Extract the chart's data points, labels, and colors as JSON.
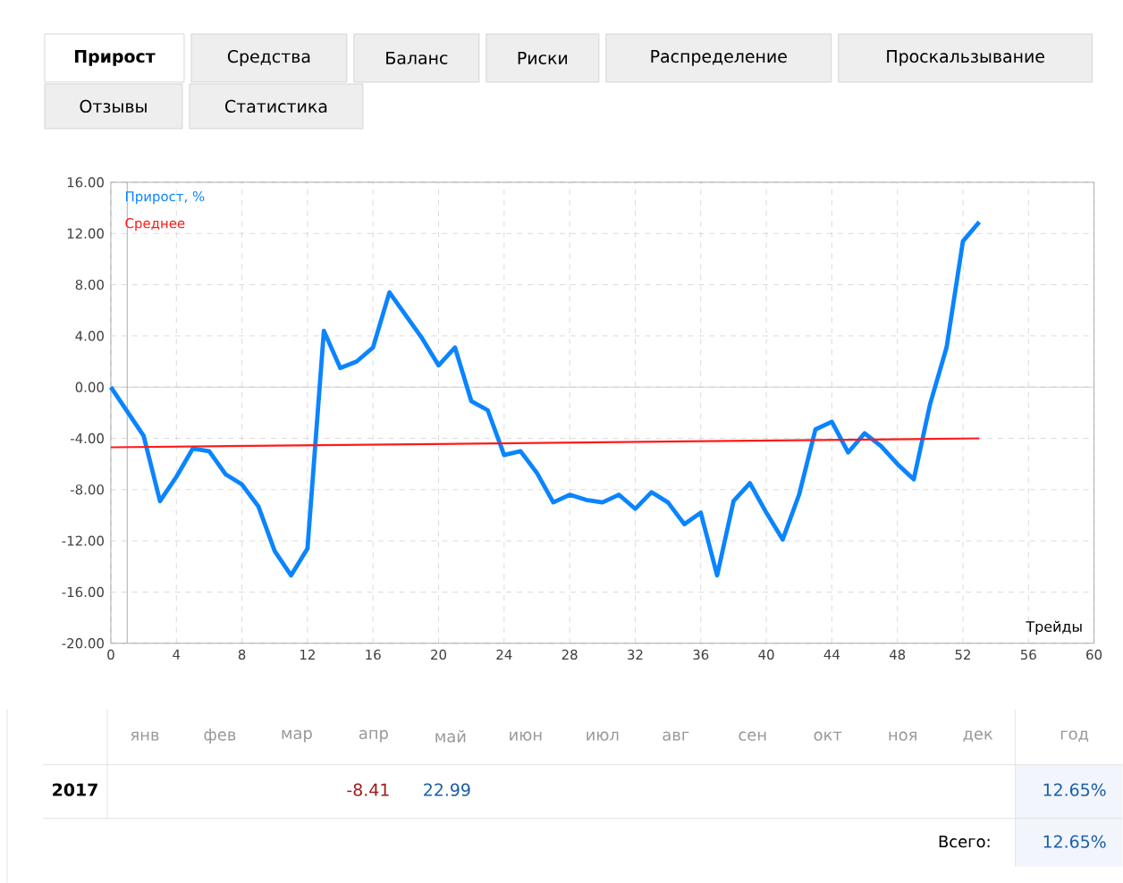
{
  "chart_data": {
    "type": "line",
    "xlabel": "Трейды",
    "legend": "top left",
    "grid": true,
    "xlim": [
      0,
      60
    ],
    "xticks": [
      0,
      4,
      8,
      12,
      16,
      20,
      24,
      28,
      32,
      36,
      40,
      44,
      48,
      52,
      56,
      60
    ],
    "ylim": [
      -20,
      16
    ],
    "yticks": [
      {
        "value": -20,
        "label": "-20.00"
      },
      {
        "value": -16,
        "label": "-16.00"
      },
      {
        "value": -12,
        "label": "-12.00"
      },
      {
        "value": -8,
        "label": "-8.00"
      },
      {
        "value": -4,
        "label": "-4.00"
      },
      {
        "value": 0,
        "label": "0.00"
      },
      {
        "value": 4,
        "label": "4.00"
      },
      {
        "value": 8,
        "label": "8.00"
      },
      {
        "value": 12,
        "label": "12.00"
      },
      {
        "value": 16,
        "label": "16.00"
      }
    ],
    "series": [
      {
        "name": "Прирост, %",
        "color": "#0a84ff",
        "x": [
          0,
          1,
          2,
          3,
          4,
          5,
          6,
          7,
          8,
          9,
          10,
          11,
          12,
          13,
          14,
          15,
          16,
          17,
          18,
          19,
          20,
          21,
          22,
          23,
          24,
          25,
          26,
          27,
          28,
          29,
          30,
          31,
          32,
          33,
          34,
          35,
          36,
          37,
          38,
          39,
          40,
          41,
          42,
          43,
          44,
          45,
          46,
          47,
          48,
          49,
          50,
          51,
          52,
          53
        ],
        "values": [
          0,
          -1.9,
          -3.8,
          -8.9,
          -7.0,
          -4.8,
          -5.0,
          -6.8,
          -7.6,
          -9.3,
          -12.8,
          -14.7,
          -12.6,
          4.4,
          1.5,
          2.0,
          3.1,
          7.4,
          5.6,
          3.8,
          1.7,
          3.1,
          -1.1,
          -1.8,
          -5.3,
          -5.0,
          -6.7,
          -9.0,
          -8.4,
          -8.8,
          -9.0,
          -8.4,
          -9.5,
          -8.2,
          -9.0,
          -10.7,
          -9.8,
          -14.7,
          -8.9,
          -7.5,
          -9.8,
          -11.9,
          -8.4,
          -3.3,
          -2.7,
          -5.1,
          -3.6,
          -4.6,
          -6.0,
          -7.2,
          -1.3,
          3.1,
          11.4,
          12.9
        ]
      },
      {
        "name": "Среднее",
        "color": "#ff1a1a",
        "x": [
          0,
          53
        ],
        "values": [
          -4.7,
          -4.0
        ]
      }
    ],
    "ref_lines": [
      {
        "axis": "y",
        "value": 0,
        "color": "#c8c8c8"
      },
      {
        "axis": "x",
        "value": 1,
        "color": "#999999"
      }
    ],
    "annotations": [
      "Прирост",
      "Средства",
      "Баланс",
      "Риски",
      "Распределение",
      "Проскальзывание",
      "Отзывы",
      "Статистика",
      "янв",
      "фев",
      "мар",
      "апр",
      "май",
      "июн",
      "июл",
      "авг",
      "сен",
      "окт",
      "ноя",
      "дек",
      "год",
      "2017",
      "-8.41",
      "22.99",
      "12.65%",
      "Всего:",
      "12.65%"
    ]
  }
}
